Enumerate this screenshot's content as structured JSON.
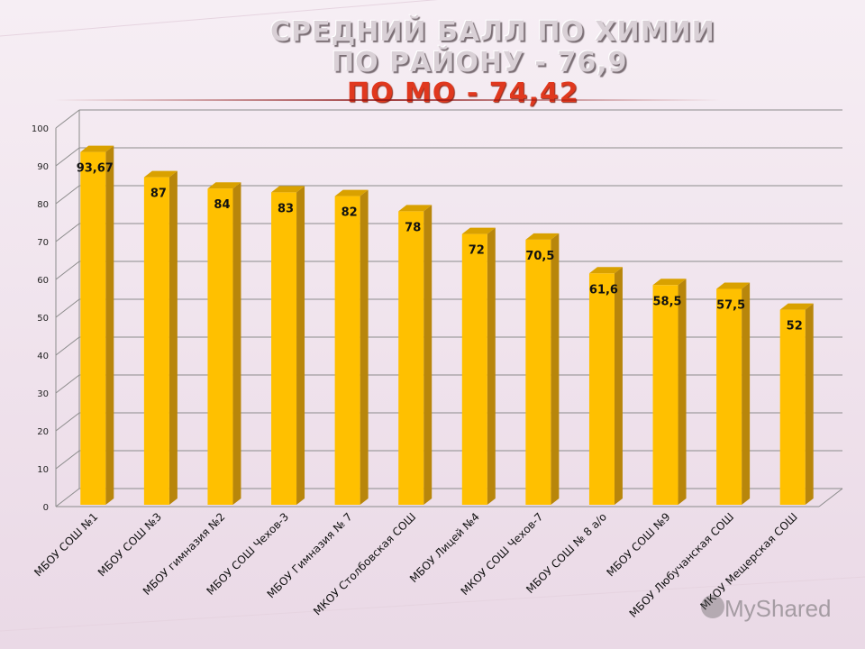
{
  "title": {
    "line1": "СРЕДНИЙ БАЛЛ ПО ХИМИИ",
    "line2": "ПО РАЙОНУ - 76,9",
    "line3": "ПО МО - 74,42"
  },
  "watermark": {
    "text": "MyShared"
  },
  "colors": {
    "bar_face": "#ffc000",
    "bar_side": "#b8860b",
    "bar_top": "#d9a100",
    "grid": "#8c8c8c",
    "title_red": "#e0381e"
  },
  "chart_data": {
    "type": "bar",
    "style": "3d-column",
    "categories": [
      "МБОУ СОШ №1",
      "МБОУ СОШ №3",
      "МБОУ гимназия №2",
      "МБОУ СОШ Чехов-3",
      "МБОУ Гимназия № 7",
      "МКОУ Столбовская СОШ",
      "МБОУ Лицей №4",
      "МКОУ СОШ Чехов-7",
      "МБОУ СОШ № 8 а/о",
      "МБОУ СОШ №9",
      "МБОУ Любучанская СОШ",
      "МКОУ Мещерская СОШ"
    ],
    "values": [
      93.67,
      87,
      84,
      83,
      82,
      78,
      72,
      70.5,
      61.6,
      58.5,
      57.5,
      52
    ],
    "data_labels": [
      "93,67",
      "87",
      "84",
      "83",
      "82",
      "78",
      "72",
      "70,5",
      "61,6",
      "58,5",
      "57,5",
      "52"
    ],
    "ylim": [
      0,
      100
    ],
    "yticks": [
      0,
      10,
      20,
      30,
      40,
      50,
      60,
      70,
      80,
      90,
      100
    ],
    "grid": true,
    "legend": "none"
  }
}
